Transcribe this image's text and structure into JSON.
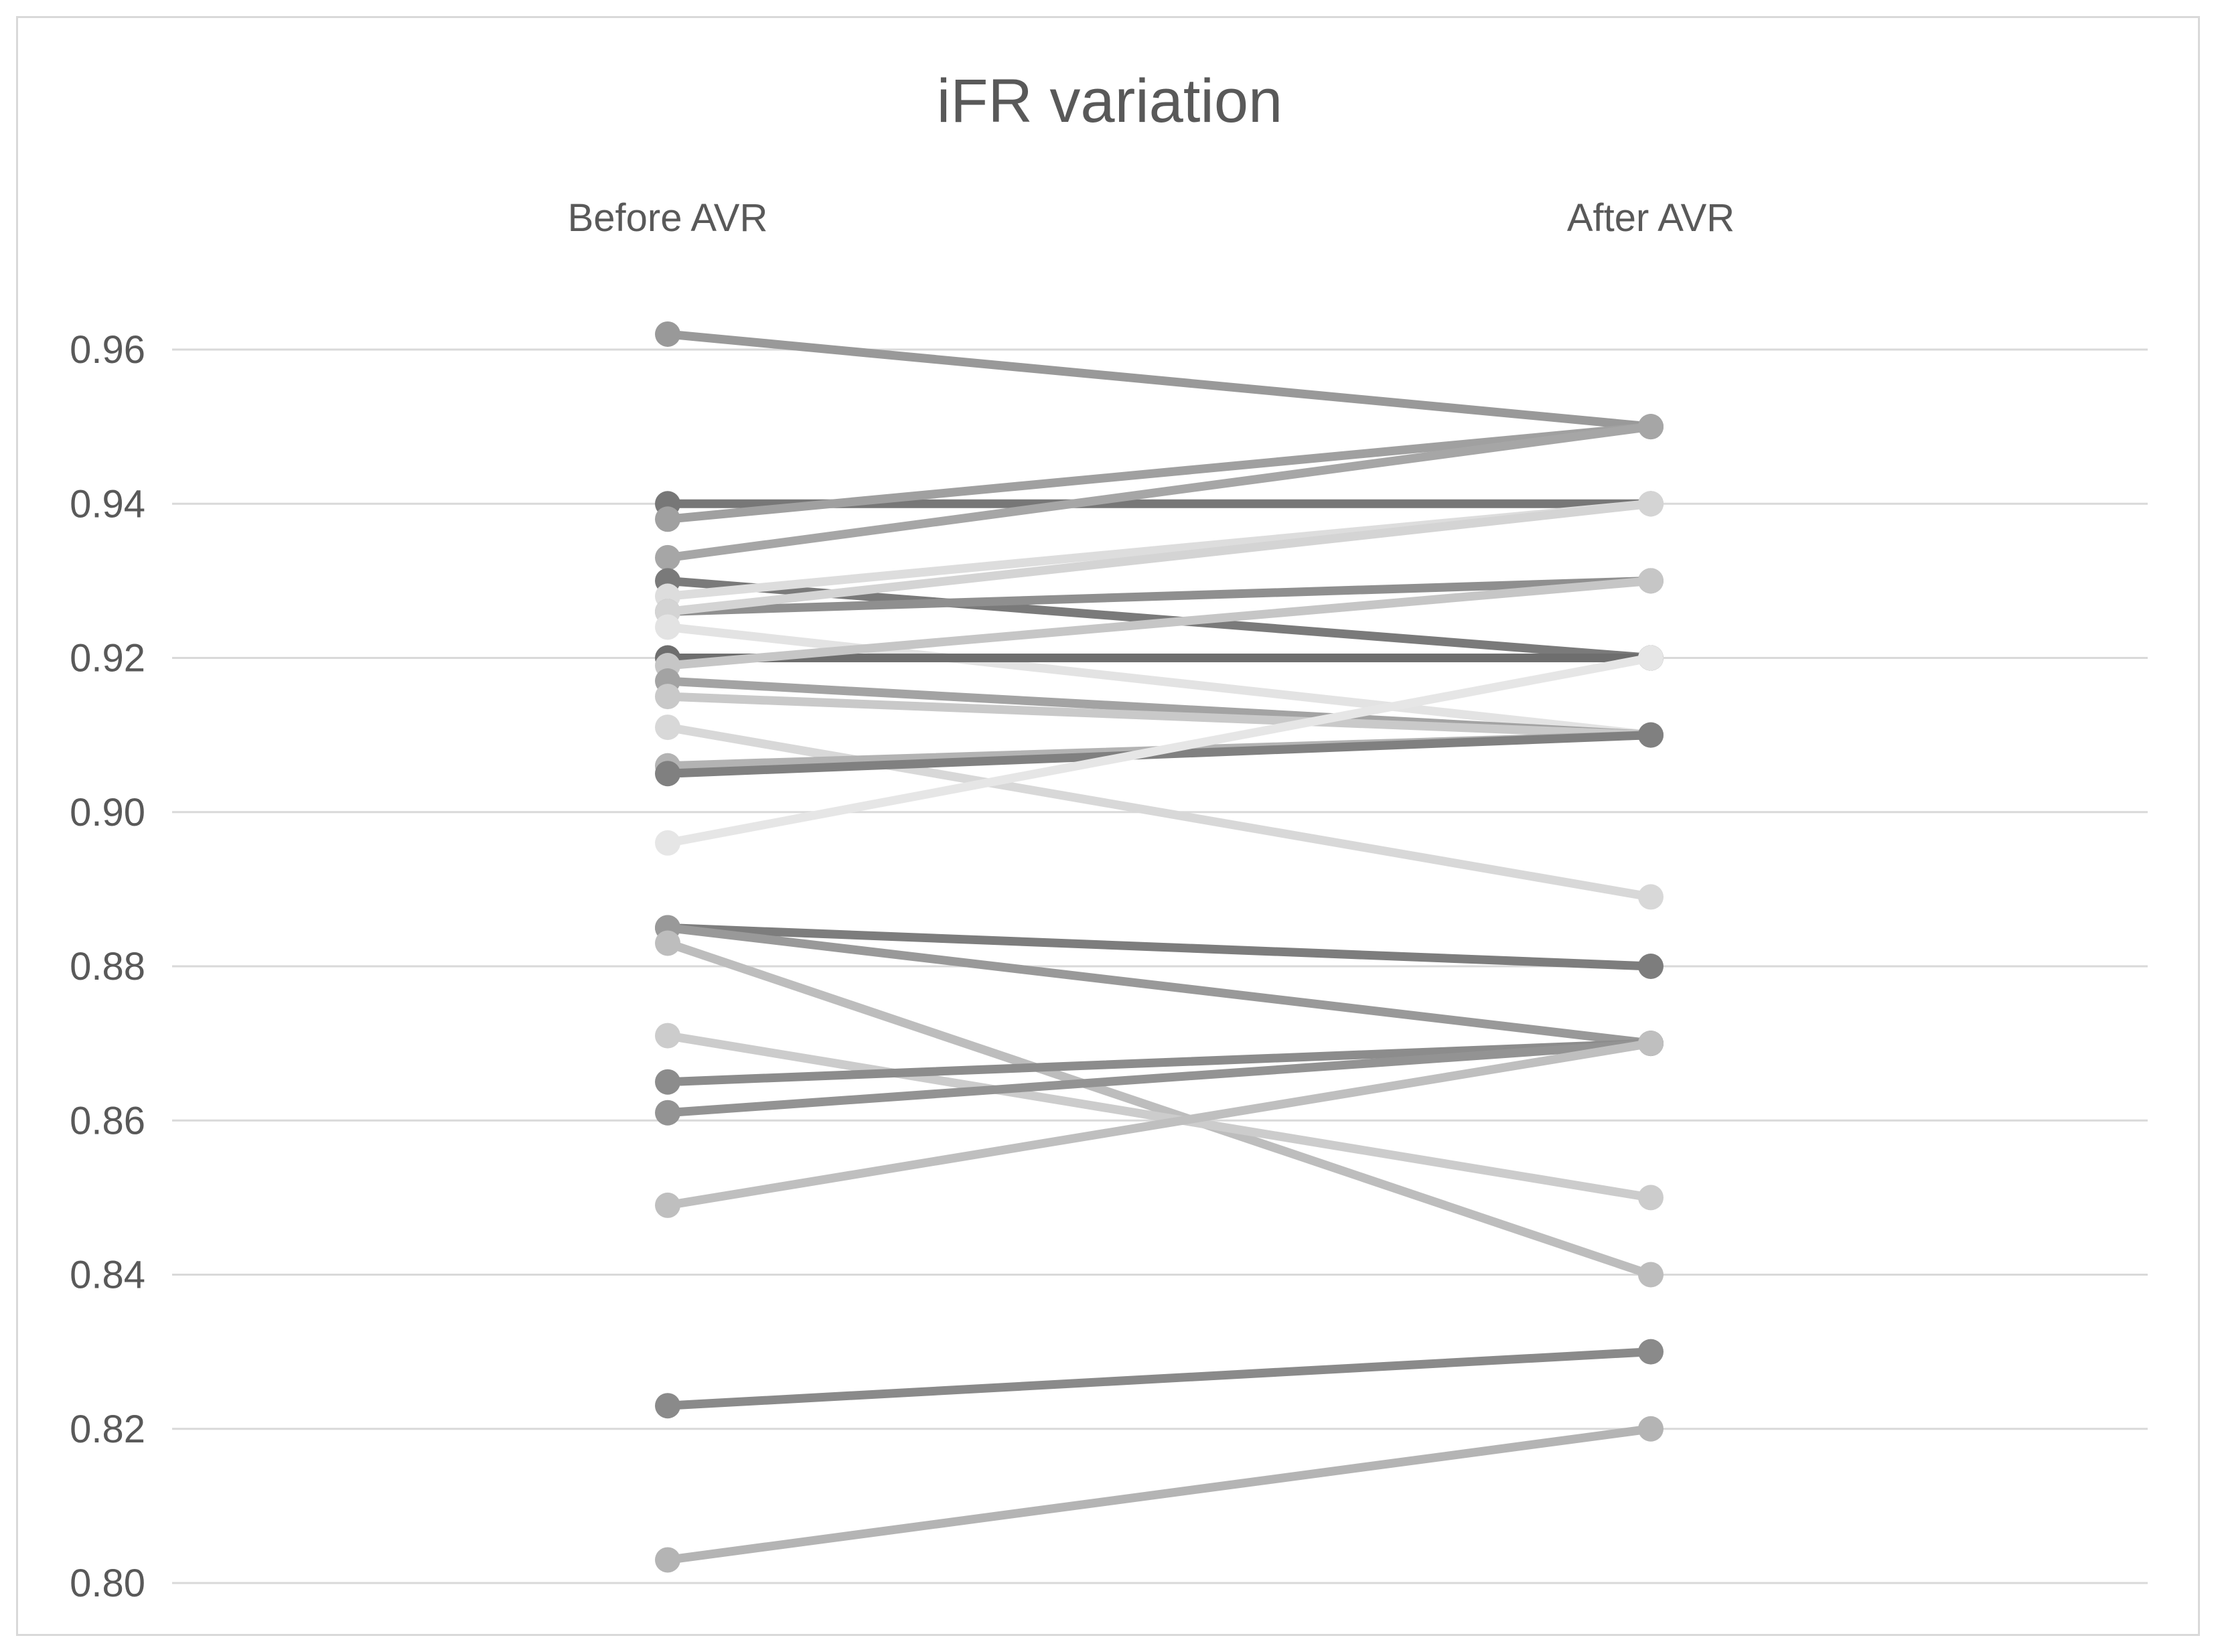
{
  "chart_data": {
    "type": "line",
    "title": "iFR variation",
    "categories": [
      "Before AVR",
      "After AVR"
    ],
    "category_label_position": "top",
    "ylim": [
      0.8,
      0.96
    ],
    "yticks": [
      "0.96",
      "0.94",
      "0.92",
      "0.90",
      "0.88",
      "0.86",
      "0.84",
      "0.82",
      "0.80"
    ],
    "grid": true,
    "legend": "none",
    "series": [
      {
        "values": [
          0.962,
          0.95
        ],
        "color": "#999999"
      },
      {
        "values": [
          0.94,
          0.94
        ],
        "color": "#777777"
      },
      {
        "values": [
          0.938,
          0.95
        ],
        "color": "#a0a0a0"
      },
      {
        "values": [
          0.933,
          0.95
        ],
        "color": "#a6a6a6"
      },
      {
        "values": [
          0.93,
          0.92
        ],
        "color": "#7a7a7a"
      },
      {
        "values": [
          0.928,
          0.94
        ],
        "color": "#dddddd"
      },
      {
        "values": [
          0.926,
          0.93
        ],
        "color": "#8f8f8f"
      },
      {
        "values": [
          0.926,
          0.94
        ],
        "color": "#d4d4d4"
      },
      {
        "values": [
          0.924,
          0.91
        ],
        "color": "#e3e3e3"
      },
      {
        "values": [
          0.92,
          0.92
        ],
        "color": "#6e6e6e"
      },
      {
        "values": [
          0.919,
          0.93
        ],
        "color": "#c6c6c6"
      },
      {
        "values": [
          0.917,
          0.91
        ],
        "color": "#a3a3a3"
      },
      {
        "values": [
          0.915,
          0.91
        ],
        "color": "#c9c9c9"
      },
      {
        "values": [
          0.911,
          0.889
        ],
        "color": "#d8d8d8"
      },
      {
        "values": [
          0.906,
          0.91
        ],
        "color": "#b3b3b3"
      },
      {
        "values": [
          0.905,
          0.91
        ],
        "color": "#808080"
      },
      {
        "values": [
          0.896,
          0.92
        ],
        "color": "#e6e6e6"
      },
      {
        "values": [
          0.885,
          0.88
        ],
        "color": "#7d7d7d"
      },
      {
        "values": [
          0.885,
          0.87
        ],
        "color": "#999999"
      },
      {
        "values": [
          0.883,
          0.84
        ],
        "color": "#bdbdbd"
      },
      {
        "values": [
          0.871,
          0.85
        ],
        "color": "#cccccc"
      },
      {
        "values": [
          0.865,
          0.87
        ],
        "color": "#8c8c8c"
      },
      {
        "values": [
          0.861,
          0.87
        ],
        "color": "#939393"
      },
      {
        "values": [
          0.849,
          0.87
        ],
        "color": "#bfbfbf"
      },
      {
        "values": [
          0.823,
          0.83
        ],
        "color": "#8a8a8a"
      },
      {
        "values": [
          0.803,
          0.82
        ],
        "color": "#b4b4b4"
      }
    ]
  }
}
